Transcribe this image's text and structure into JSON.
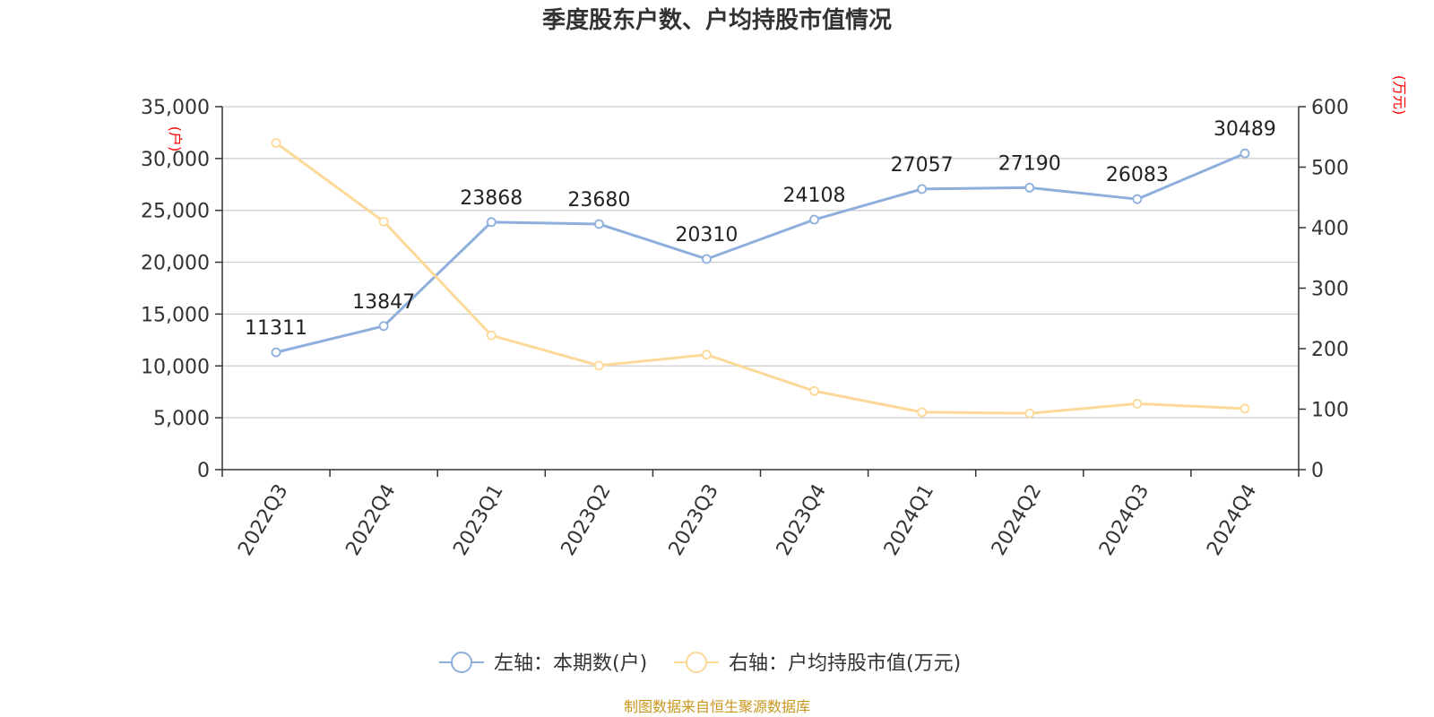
{
  "chart_data": {
    "type": "line",
    "title": "季度股东户数、户均持股市值情况",
    "categories": [
      "2022Q3",
      "2022Q4",
      "2023Q1",
      "2023Q2",
      "2023Q3",
      "2023Q4",
      "2024Q1",
      "2024Q2",
      "2024Q3",
      "2024Q4"
    ],
    "left_axis": {
      "unit": "(户)",
      "ylim": [
        0,
        35000
      ],
      "ticks": [
        0,
        5000,
        10000,
        15000,
        20000,
        25000,
        30000,
        35000
      ],
      "tick_labels": [
        "0",
        "5,000",
        "10,000",
        "15,000",
        "20,000",
        "25,000",
        "30,000",
        "35,000"
      ]
    },
    "right_axis": {
      "unit": "(万元)",
      "ylim": [
        0,
        600
      ],
      "ticks": [
        0,
        100,
        200,
        300,
        400,
        500,
        600
      ],
      "tick_labels": [
        "0",
        "100",
        "200",
        "300",
        "400",
        "500",
        "600"
      ]
    },
    "series": [
      {
        "name": "左轴：本期数(户)",
        "axis": "left",
        "color": "#8eaedc",
        "values": [
          11311,
          13847,
          23868,
          23680,
          20310,
          24108,
          27057,
          27190,
          26083,
          30489
        ],
        "labels": [
          "11311",
          "13847",
          "23868",
          "23680",
          "20310",
          "24108",
          "27057",
          "27190",
          "26083",
          "30489"
        ]
      },
      {
        "name": "右轴：户均持股市值(万元)",
        "axis": "right",
        "color": "#fcd998",
        "values": [
          540,
          410,
          222,
          172,
          190,
          130,
          95,
          93,
          109,
          101
        ]
      }
    ],
    "grid": true,
    "legend": "bottom-center"
  },
  "source_text": "制图数据来自恒生聚源数据库",
  "colors": {
    "grid": "#cccccc",
    "axis": "#333333",
    "source": "#c8961e"
  }
}
